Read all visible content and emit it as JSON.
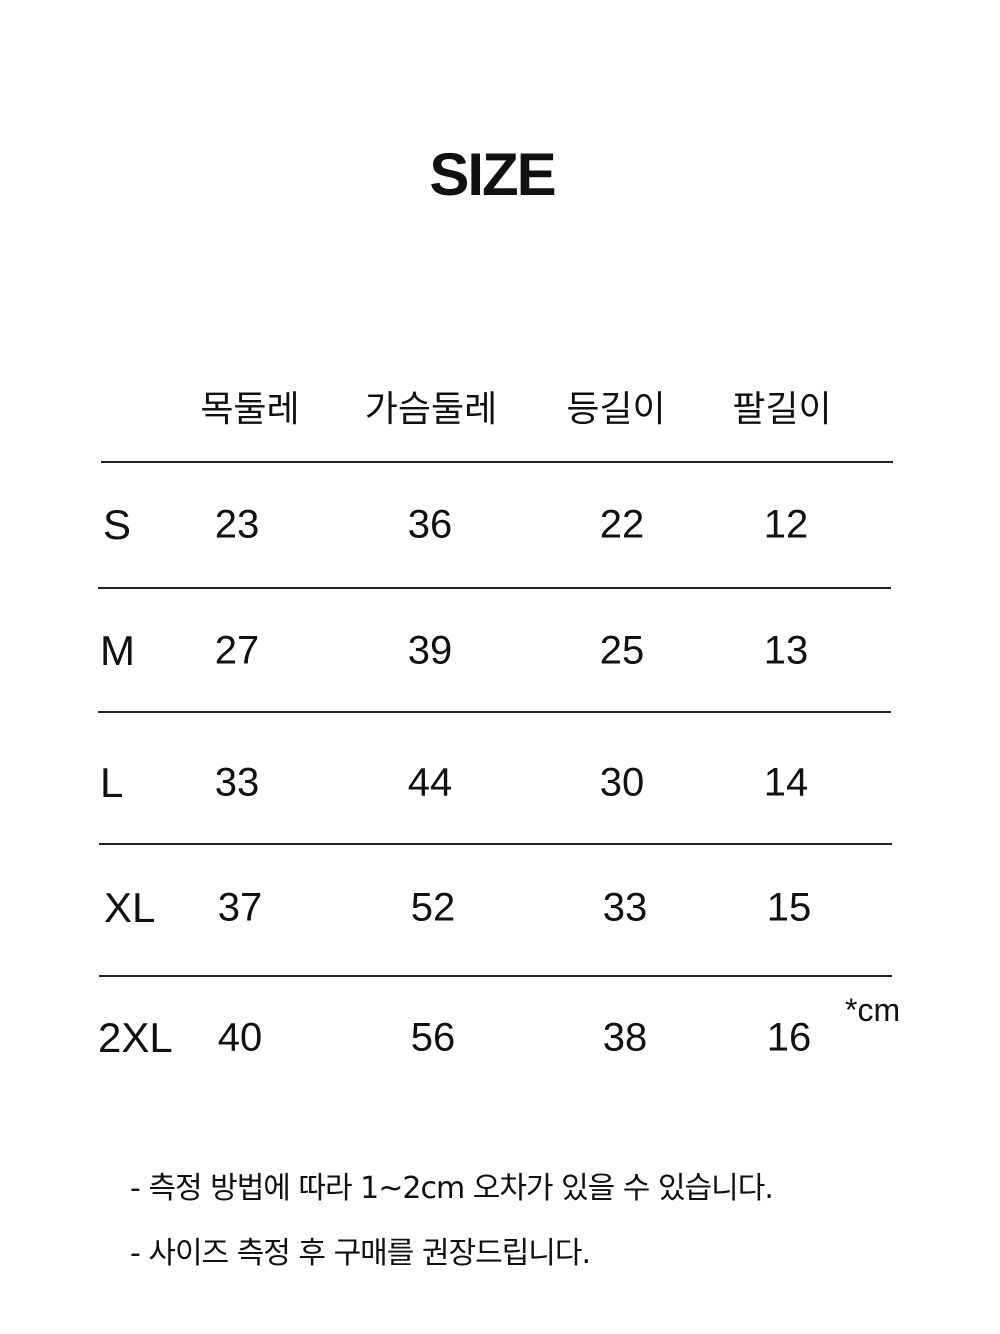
{
  "title": "SIZE",
  "headers": [
    "목둘레",
    "가슴둘레",
    "등길이",
    "팔길이"
  ],
  "rows": [
    {
      "size": "S",
      "values": [
        "23",
        "36",
        "22",
        "12"
      ]
    },
    {
      "size": "M",
      "values": [
        "27",
        "39",
        "25",
        "13"
      ]
    },
    {
      "size": "L",
      "values": [
        "33",
        "44",
        "30",
        "14"
      ]
    },
    {
      "size": "XL",
      "values": [
        "37",
        "52",
        "33",
        "15"
      ]
    },
    {
      "size": "2XL",
      "values": [
        "40",
        "56",
        "38",
        "16"
      ]
    }
  ],
  "unit": "*cm",
  "notes": [
    "- 측정 방법에 따라 1~2cm 오차가 있을 수 있습니다.",
    "-  사이즈 측정 후 구매를 권장드립니다."
  ]
}
